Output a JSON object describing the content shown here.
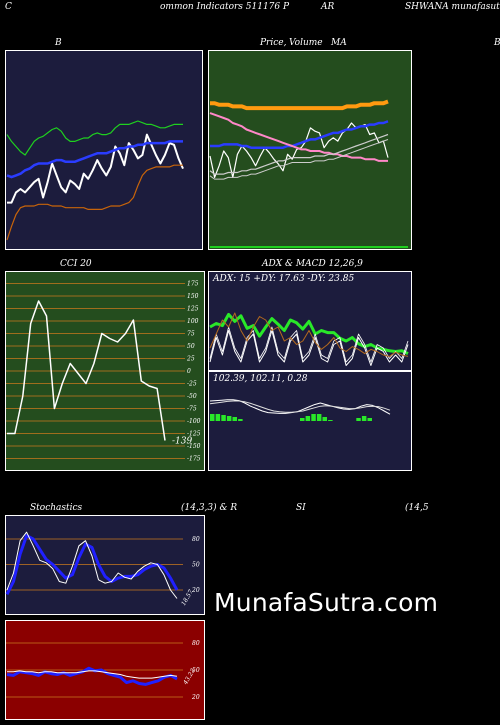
{
  "header": {
    "left_c": "C",
    "title_mid": "ommon  Indicators 511176  P",
    "title_ar": "AR",
    "title_right": "SHWANA munafasutra.tin"
  },
  "labels": {
    "bb": "B",
    "price_ma": "Price,",
    "volume_overlap": "Volume",
    "ma_suffix": "MA",
    "right_edge": "B",
    "cci": "CCI 20",
    "adx_macd": "ADX  & MACD 12,26,9",
    "stochastics": "Stochastics",
    "stoch_params": "(14,3,3) & R",
    "si": "SI",
    "rsi_params": "(14,5"
  },
  "watermark": "MunafaSutra.com",
  "colors": {
    "panel_navy": "#1c1c3d",
    "panel_green": "#244d1e",
    "panel_red": "#8b0000",
    "grid_orange": "#c8781e",
    "bb_green": "#1fd01f",
    "bb_blue": "#2a3cff",
    "bb_orange": "#c8640a",
    "ma_orange": "#ff9a10",
    "ma_pink": "#ff88c8",
    "adx_green": "#29e829",
    "stoch_blue": "#2020ff"
  },
  "chart_data": [
    {
      "type": "line",
      "name": "bollinger",
      "x": [
        0,
        1,
        2,
        3,
        4,
        5,
        6,
        7,
        8,
        9,
        10,
        11,
        12,
        13,
        14,
        15,
        16,
        17,
        18,
        19,
        20,
        21,
        22,
        23,
        24,
        25,
        26,
        27,
        28,
        29,
        30,
        31,
        32,
        33,
        34,
        35,
        36,
        37,
        38,
        39
      ],
      "series": [
        {
          "name": "close",
          "color": "#ffffff",
          "values": [
            0.22,
            0.22,
            0.28,
            0.3,
            0.28,
            0.31,
            0.34,
            0.36,
            0.25,
            0.34,
            0.45,
            0.38,
            0.31,
            0.28,
            0.35,
            0.33,
            0.3,
            0.39,
            0.36,
            0.41,
            0.47,
            0.42,
            0.38,
            0.43,
            0.55,
            0.51,
            0.44,
            0.57,
            0.53,
            0.48,
            0.5,
            0.62,
            0.56,
            0.5,
            0.45,
            0.5,
            0.57,
            0.56,
            0.48,
            0.42
          ]
        },
        {
          "name": "upper",
          "color": "#1fd01f",
          "values": [
            0.62,
            0.58,
            0.55,
            0.52,
            0.5,
            0.54,
            0.58,
            0.6,
            0.61,
            0.63,
            0.65,
            0.66,
            0.64,
            0.6,
            0.58,
            0.58,
            0.59,
            0.6,
            0.6,
            0.62,
            0.63,
            0.62,
            0.62,
            0.63,
            0.66,
            0.68,
            0.68,
            0.68,
            0.69,
            0.7,
            0.69,
            0.68,
            0.68,
            0.67,
            0.66,
            0.66,
            0.67,
            0.68,
            0.68,
            0.68
          ]
        },
        {
          "name": "middle",
          "color": "#2a3cff",
          "values": [
            0.38,
            0.37,
            0.38,
            0.39,
            0.41,
            0.42,
            0.44,
            0.45,
            0.45,
            0.45,
            0.46,
            0.47,
            0.47,
            0.46,
            0.46,
            0.46,
            0.47,
            0.48,
            0.49,
            0.5,
            0.51,
            0.51,
            0.51,
            0.52,
            0.53,
            0.54,
            0.54,
            0.55,
            0.55,
            0.56,
            0.56,
            0.57,
            0.57,
            0.57,
            0.57,
            0.57,
            0.58,
            0.58,
            0.58,
            0.58
          ]
        },
        {
          "name": "lower",
          "color": "#c8640a",
          "values": [
            0.0,
            0.08,
            0.15,
            0.19,
            0.2,
            0.2,
            0.2,
            0.21,
            0.21,
            0.21,
            0.2,
            0.2,
            0.2,
            0.19,
            0.19,
            0.19,
            0.19,
            0.19,
            0.18,
            0.18,
            0.18,
            0.18,
            0.19,
            0.2,
            0.2,
            0.2,
            0.21,
            0.22,
            0.25,
            0.32,
            0.38,
            0.41,
            0.42,
            0.43,
            0.43,
            0.43,
            0.43,
            0.44,
            0.44,
            0.44
          ]
        }
      ]
    },
    {
      "type": "line",
      "name": "price_ma",
      "x": [
        0,
        1,
        2,
        3,
        4,
        5,
        6,
        7,
        8,
        9,
        10,
        11,
        12,
        13,
        14,
        15,
        16,
        17,
        18,
        19,
        20,
        21,
        22,
        23,
        24,
        25,
        26,
        27,
        28,
        29,
        30,
        31,
        32,
        33,
        34,
        35,
        36,
        37,
        38,
        39
      ],
      "series": [
        {
          "name": "price",
          "color": "#ffffff",
          "values": [
            0.57,
            0.44,
            0.51,
            0.6,
            0.56,
            0.44,
            0.58,
            0.63,
            0.6,
            0.56,
            0.51,
            0.57,
            0.62,
            0.59,
            0.55,
            0.52,
            0.48,
            0.58,
            0.55,
            0.61,
            0.62,
            0.66,
            0.74,
            0.72,
            0.71,
            0.62,
            0.66,
            0.68,
            0.66,
            0.71,
            0.73,
            0.77,
            0.74,
            0.75,
            0.76,
            0.7,
            0.71,
            0.65,
            0.66,
            0.56
          ]
        },
        {
          "name": "ma_orange",
          "color": "#ff9a10",
          "values": [
            0.89,
            0.89,
            0.88,
            0.88,
            0.88,
            0.87,
            0.87,
            0.87,
            0.86,
            0.86,
            0.86,
            0.86,
            0.86,
            0.86,
            0.86,
            0.86,
            0.86,
            0.86,
            0.86,
            0.86,
            0.86,
            0.86,
            0.86,
            0.86,
            0.86,
            0.86,
            0.86,
            0.86,
            0.86,
            0.86,
            0.87,
            0.87,
            0.87,
            0.88,
            0.88,
            0.88,
            0.89,
            0.89,
            0.89,
            0.9
          ]
        },
        {
          "name": "ma_blue",
          "color": "#2a3cff",
          "values": [
            0.63,
            0.63,
            0.63,
            0.64,
            0.64,
            0.64,
            0.64,
            0.63,
            0.63,
            0.62,
            0.62,
            0.62,
            0.62,
            0.62,
            0.62,
            0.62,
            0.62,
            0.63,
            0.63,
            0.64,
            0.65,
            0.66,
            0.67,
            0.67,
            0.68,
            0.69,
            0.7,
            0.71,
            0.71,
            0.72,
            0.73,
            0.73,
            0.74,
            0.75,
            0.75,
            0.76,
            0.76,
            0.77,
            0.77,
            0.78
          ]
        },
        {
          "name": "ma_pink",
          "color": "#ff88c8",
          "values": [
            0.83,
            0.82,
            0.81,
            0.8,
            0.79,
            0.77,
            0.76,
            0.75,
            0.73,
            0.72,
            0.71,
            0.7,
            0.69,
            0.68,
            0.67,
            0.66,
            0.65,
            0.64,
            0.63,
            0.62,
            0.61,
            0.61,
            0.6,
            0.6,
            0.6,
            0.59,
            0.59,
            0.58,
            0.58,
            0.57,
            0.57,
            0.56,
            0.56,
            0.56,
            0.55,
            0.55,
            0.55,
            0.54,
            0.54,
            0.54
          ]
        },
        {
          "name": "ma_grey",
          "color": "#cccccc",
          "values": [
            0.48,
            0.46,
            0.46,
            0.46,
            0.47,
            0.47,
            0.47,
            0.48,
            0.48,
            0.49,
            0.49,
            0.5,
            0.51,
            0.52,
            0.53,
            0.54,
            0.54,
            0.55,
            0.56,
            0.56,
            0.56,
            0.56,
            0.56,
            0.57,
            0.57,
            0.57,
            0.58,
            0.58,
            0.59,
            0.6,
            0.61,
            0.62,
            0.63,
            0.64,
            0.65,
            0.66,
            0.67,
            0.68,
            0.69,
            0.7
          ]
        }
      ]
    },
    {
      "type": "line",
      "name": "cci",
      "y_ticks": [
        175,
        150,
        125,
        100,
        75,
        50,
        25,
        0,
        -25,
        -50,
        -75,
        -100,
        -125,
        -150,
        -175
      ],
      "ylim": [
        -190,
        190
      ],
      "last_value_label": "-139",
      "series": [
        {
          "name": "cci",
          "color": "#ffffff",
          "values": [
            -125,
            -125,
            -50,
            95,
            140,
            110,
            -75,
            -25,
            15,
            -5,
            -25,
            15,
            75,
            65,
            58,
            75,
            102,
            -20,
            -30,
            -35,
            -139
          ]
        }
      ]
    },
    {
      "type": "line",
      "name": "adx",
      "title": "ADX: 15 +DY: 17.63 -DY: 23.85",
      "series": [
        {
          "name": "adx",
          "color": "#29e829",
          "values": [
            0.6,
            0.65,
            0.62,
            0.78,
            0.68,
            0.76,
            0.58,
            0.62,
            0.47,
            0.6,
            0.72,
            0.64,
            0.55,
            0.7,
            0.66,
            0.57,
            0.68,
            0.5,
            0.55,
            0.52,
            0.52,
            0.44,
            0.4,
            0.45,
            0.36,
            0.32,
            0.35,
            0.3,
            0.28,
            0.26,
            0.25,
            0.26,
            0.22
          ]
        },
        {
          "name": "plus_dy",
          "color": "#ffffff",
          "values": [
            0.1,
            0.45,
            0.2,
            0.55,
            0.25,
            0.1,
            0.4,
            0.5,
            0.1,
            0.25,
            0.55,
            0.2,
            0.1,
            0.4,
            0.5,
            0.1,
            0.2,
            0.45,
            0.15,
            0.1,
            0.35,
            0.4,
            0.05,
            0.15,
            0.45,
            0.3,
            0.05,
            0.3,
            0.25,
            0.1,
            0.2,
            0.1,
            0.35
          ]
        },
        {
          "name": "minus_dy",
          "color": "#b46a1e",
          "values": [
            0.3,
            0.5,
            0.7,
            0.6,
            0.8,
            0.55,
            0.4,
            0.6,
            0.75,
            0.7,
            0.55,
            0.6,
            0.4,
            0.45,
            0.35,
            0.4,
            0.55,
            0.38,
            0.28,
            0.35,
            0.45,
            0.3,
            0.25,
            0.32,
            0.28,
            0.22,
            0.28,
            0.25,
            0.2,
            0.18,
            0.24,
            0.2,
            0.18
          ]
        }
      ]
    },
    {
      "type": "line",
      "name": "macd",
      "title": "102.39,  102.11,  0.28",
      "series": [
        {
          "name": "macd",
          "color": "#ffffff",
          "values": [
            0.55,
            0.56,
            0.57,
            0.58,
            0.58,
            0.56,
            0.5,
            0.42,
            0.36,
            0.3,
            0.26,
            0.25,
            0.24,
            0.24,
            0.26,
            0.28,
            0.34,
            0.4,
            0.46,
            0.5,
            0.46,
            0.42,
            0.38,
            0.35,
            0.34,
            0.36,
            0.42,
            0.46,
            0.44,
            0.38,
            0.3,
            0.22
          ]
        },
        {
          "name": "signal",
          "color": "#dddddd",
          "values": [
            0.48,
            0.5,
            0.52,
            0.54,
            0.55,
            0.55,
            0.53,
            0.49,
            0.44,
            0.39,
            0.34,
            0.3,
            0.28,
            0.27,
            0.27,
            0.28,
            0.3,
            0.34,
            0.38,
            0.42,
            0.43,
            0.42,
            0.4,
            0.38,
            0.36,
            0.36,
            0.38,
            0.41,
            0.42,
            0.41,
            0.37,
            0.32
          ]
        },
        {
          "name": "histogram",
          "color": "#29e829",
          "values": [
            0.07,
            0.07,
            0.06,
            0.05,
            0.04,
            0.02,
            -0.02,
            -0.05,
            -0.07,
            -0.08,
            -0.08,
            -0.06,
            -0.04,
            -0.03,
            -0.01,
            0.0,
            0.03,
            0.05,
            0.07,
            0.07,
            0.04,
            0.01,
            -0.01,
            -0.02,
            -0.02,
            0.0,
            0.03,
            0.05,
            0.03,
            -0.02,
            -0.06,
            -0.09
          ]
        }
      ]
    },
    {
      "type": "line",
      "name": "stochastics",
      "y_ticks": [
        80,
        50,
        20
      ],
      "ylim": [
        0,
        100
      ],
      "last_value_label": "18.57",
      "series": [
        {
          "name": "k",
          "color": "#ffffff",
          "values": [
            20,
            40,
            78,
            88,
            72,
            55,
            52,
            45,
            30,
            28,
            48,
            72,
            78,
            60,
            32,
            28,
            30,
            40,
            35,
            33,
            42,
            48,
            52,
            50,
            38,
            20,
            10
          ]
        },
        {
          "name": "d",
          "color": "#2020ff",
          "values": [
            15,
            30,
            62,
            84,
            80,
            68,
            56,
            50,
            42,
            34,
            38,
            58,
            74,
            70,
            50,
            36,
            30,
            34,
            36,
            36,
            38,
            44,
            48,
            50,
            46,
            34,
            20
          ]
        }
      ]
    },
    {
      "type": "line",
      "name": "rsi",
      "y_ticks": [
        80,
        50,
        20
      ],
      "ylim": [
        0,
        100
      ],
      "last_value_label": "43.23",
      "series": [
        {
          "name": "rsi",
          "color": "#2020ff",
          "values": [
            45,
            44,
            48,
            47,
            46,
            44,
            48,
            46,
            45,
            47,
            44,
            46,
            48,
            52,
            49,
            50,
            46,
            44,
            42,
            36,
            38,
            35,
            34,
            36,
            38,
            42,
            44,
            40
          ]
        },
        {
          "name": "ref",
          "color": "#ffffff",
          "values": [
            48,
            48,
            49,
            48,
            48,
            47,
            48,
            48,
            47,
            47,
            47,
            47,
            48,
            49,
            49,
            48,
            47,
            46,
            45,
            43,
            42,
            41,
            41,
            41,
            42,
            43,
            44,
            43
          ]
        }
      ]
    }
  ]
}
